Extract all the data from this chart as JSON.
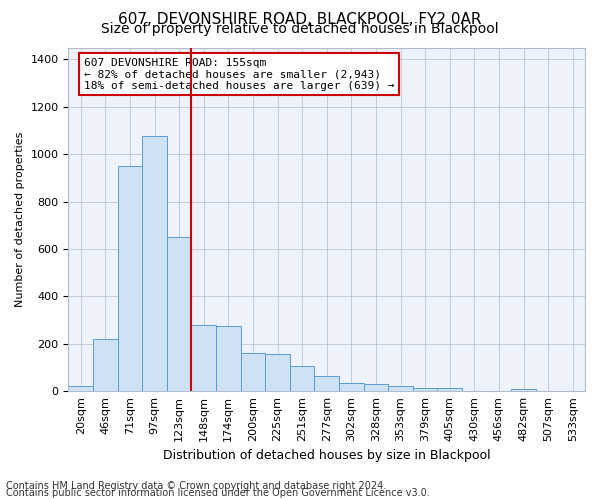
{
  "title": "607, DEVONSHIRE ROAD, BLACKPOOL, FY2 0AR",
  "subtitle": "Size of property relative to detached houses in Blackpool",
  "xlabel": "Distribution of detached houses by size in Blackpool",
  "ylabel": "Number of detached properties",
  "categories": [
    "20sqm",
    "46sqm",
    "71sqm",
    "97sqm",
    "123sqm",
    "148sqm",
    "174sqm",
    "200sqm",
    "225sqm",
    "251sqm",
    "277sqm",
    "302sqm",
    "328sqm",
    "353sqm",
    "379sqm",
    "405sqm",
    "430sqm",
    "456sqm",
    "482sqm",
    "507sqm",
    "533sqm"
  ],
  "values": [
    20,
    220,
    950,
    1075,
    650,
    280,
    275,
    160,
    155,
    105,
    65,
    35,
    30,
    20,
    15,
    15,
    0,
    0,
    10,
    0,
    0
  ],
  "bar_color": "#cfe2f3",
  "bar_edge_color": "#5b9bd5",
  "vline_color": "#cc0000",
  "annotation_text": "607 DEVONSHIRE ROAD: 155sqm\n← 82% of detached houses are smaller (2,943)\n18% of semi-detached houses are larger (639) →",
  "annotation_box_color": "#ffffff",
  "annotation_box_edge_color": "#cc0000",
  "ylim": [
    0,
    1450
  ],
  "yticks": [
    0,
    200,
    400,
    600,
    800,
    1000,
    1200,
    1400
  ],
  "footer1": "Contains HM Land Registry data © Crown copyright and database right 2024.",
  "footer2": "Contains public sector information licensed under the Open Government Licence v3.0.",
  "plot_bg_color": "#eef2fa",
  "title_fontsize": 11,
  "subtitle_fontsize": 10,
  "xlabel_fontsize": 9,
  "ylabel_fontsize": 8,
  "tick_fontsize": 8,
  "annot_fontsize": 8,
  "footer_fontsize": 7
}
